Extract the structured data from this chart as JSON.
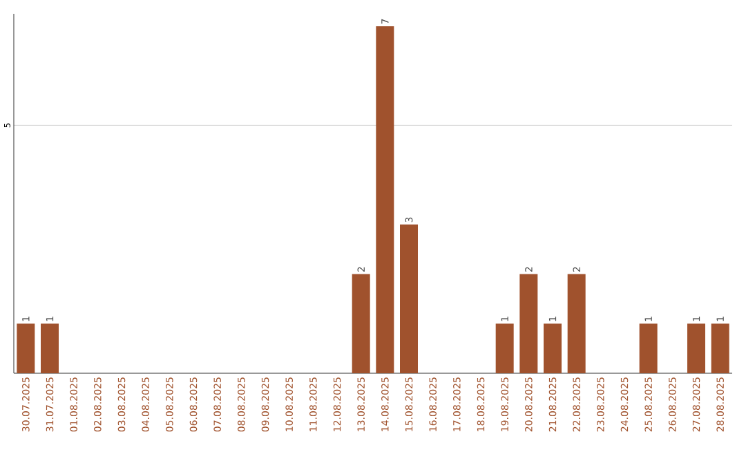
{
  "chart_data": {
    "type": "bar",
    "color": "#a0522d",
    "categories": [
      "30.07.2025",
      "31.07.2025",
      "01.08.2025",
      "02.08.2025",
      "03.08.2025",
      "04.08.2025",
      "05.08.2025",
      "06.08.2025",
      "07.08.2025",
      "08.08.2025",
      "09.08.2025",
      "10.08.2025",
      "11.08.2025",
      "12.08.2025",
      "13.08.2025",
      "14.08.2025",
      "15.08.2025",
      "16.08.2025",
      "17.08.2025",
      "18.08.2025",
      "19.08.2025",
      "20.08.2025",
      "21.08.2025",
      "22.08.2025",
      "23.08.2025",
      "24.08.2025",
      "25.08.2025",
      "26.08.2025",
      "27.08.2025",
      "28.08.2025"
    ],
    "values": [
      1,
      1,
      0,
      0,
      0,
      0,
      0,
      0,
      0,
      0,
      0,
      0,
      0,
      0,
      2,
      7,
      3,
      0,
      0,
      0,
      1,
      2,
      1,
      2,
      0,
      0,
      1,
      0,
      1,
      1
    ],
    "value_labels": [
      "1",
      "1",
      null,
      null,
      null,
      null,
      null,
      null,
      null,
      null,
      null,
      null,
      null,
      null,
      "2",
      "7",
      "3",
      null,
      null,
      null,
      "1",
      "2",
      "1",
      "2",
      null,
      null,
      "1",
      null,
      "1",
      "1"
    ],
    "ylim": [
      0,
      7.25
    ],
    "yticks": [
      5
    ],
    "grid": "y"
  }
}
